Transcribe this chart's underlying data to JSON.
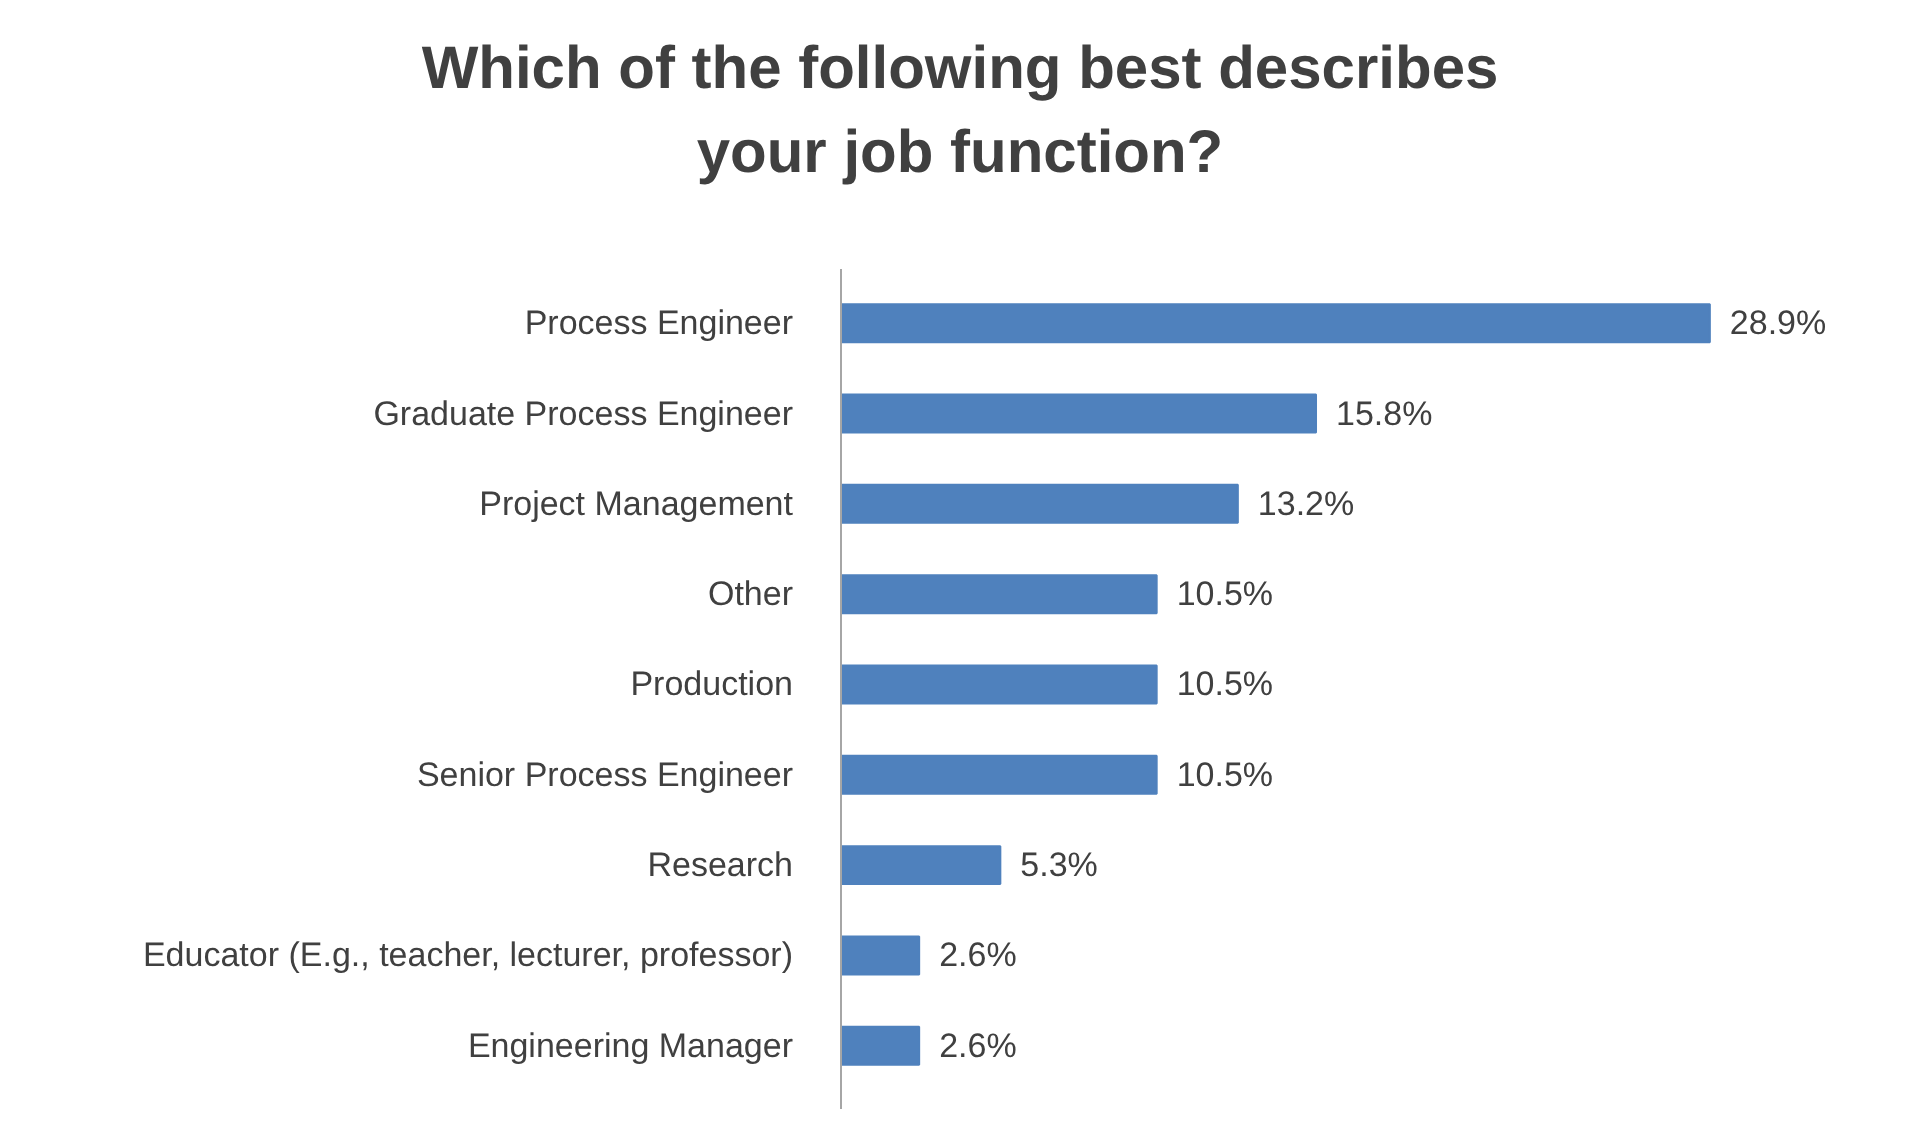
{
  "chart_data": {
    "type": "bar",
    "orientation": "horizontal",
    "title": "Which of the following best describes your job function?",
    "categories": [
      "Process Engineer",
      "Graduate Process Engineer",
      "Project Management",
      "Other",
      "Production",
      "Senior Process Engineer",
      "Research",
      "Educator (E.g., teacher, lecturer, professor)",
      "Engineering Manager"
    ],
    "values": [
      28.9,
      15.8,
      13.2,
      10.5,
      10.5,
      10.5,
      5.3,
      2.6,
      2.6
    ],
    "color": "#4f81bd",
    "value_labels": [
      "28.9%",
      "15.8%",
      "13.2%",
      "10.5%",
      "10.5%",
      "10.5%",
      "5.3%",
      "2.6%",
      "2.6%"
    ]
  }
}
